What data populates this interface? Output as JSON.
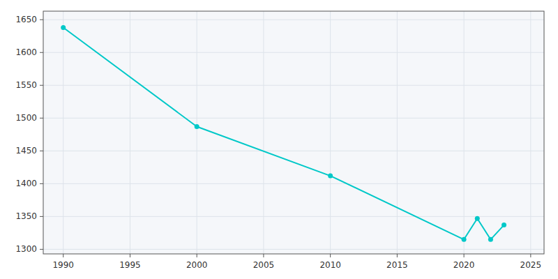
{
  "chart_data": {
    "type": "line",
    "x": [
      1990,
      2000,
      2010,
      2020,
      2021,
      2022,
      2023
    ],
    "values": [
      1638,
      1487,
      1412,
      1315,
      1347,
      1315,
      1337
    ],
    "color": "#00c8c8",
    "marker": "circle",
    "xlim": [
      1988.5,
      2026
    ],
    "ylim": [
      1293,
      1663
    ],
    "xticks": [
      1990,
      1995,
      2000,
      2005,
      2010,
      2015,
      2020,
      2025
    ],
    "yticks": [
      1300,
      1350,
      1400,
      1450,
      1500,
      1550,
      1600,
      1650
    ],
    "grid": true
  }
}
